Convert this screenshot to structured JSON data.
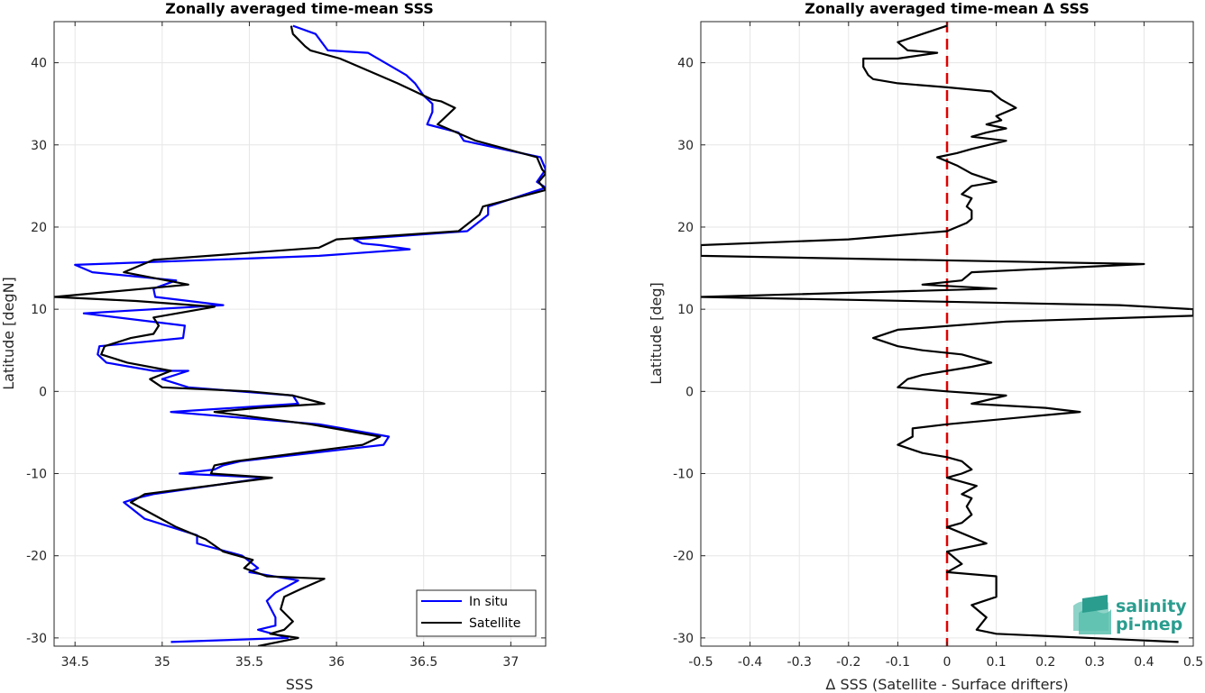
{
  "chart_data": [
    {
      "type": "line",
      "title": "Zonally averaged time-mean SSS",
      "xlabel": "SSS",
      "ylabel": "Latitude [degN]",
      "xlim": [
        34.38,
        37.2
      ],
      "ylim": [
        -31,
        45
      ],
      "xticks": [
        34.5,
        35,
        35.5,
        36,
        36.5,
        37
      ],
      "xtick_labels": [
        "34.5",
        "35",
        "35.5",
        "36",
        "36.5",
        "37"
      ],
      "yticks": [
        -30,
        -20,
        -10,
        0,
        10,
        20,
        30,
        40
      ],
      "ytick_labels": [
        "-30",
        "-20",
        "-10",
        "0",
        "10",
        "20",
        "30",
        "40"
      ],
      "grid": true,
      "legend": {
        "placement": "bottom-right",
        "entries": [
          "In situ",
          "Satellite"
        ]
      },
      "series": [
        {
          "name": "In situ",
          "color": "#0000ff",
          "points": [
            [
              35.75,
              44.5
            ],
            [
              35.88,
              43.5
            ],
            [
              35.95,
              41.5
            ],
            [
              36.18,
              41.2
            ],
            [
              36.4,
              38.5
            ],
            [
              36.45,
              37.5
            ],
            [
              36.5,
              36.0
            ],
            [
              36.55,
              35.0
            ],
            [
              36.55,
              34.0
            ],
            [
              36.52,
              32.5
            ],
            [
              36.7,
              31.5
            ],
            [
              36.73,
              30.5
            ],
            [
              37.17,
              28.5
            ],
            [
              37.2,
              27.0
            ],
            [
              37.15,
              25.5
            ],
            [
              37.2,
              24.8
            ],
            [
              36.87,
              22.5
            ],
            [
              36.87,
              21.5
            ],
            [
              36.75,
              19.5
            ],
            [
              36.1,
              18.5
            ],
            [
              36.15,
              18.0
            ],
            [
              36.25,
              17.8
            ],
            [
              36.42,
              17.3
            ],
            [
              35.9,
              16.5
            ],
            [
              34.5,
              15.4
            ],
            [
              34.6,
              14.5
            ],
            [
              35.08,
              13.5
            ],
            [
              34.95,
              12.5
            ],
            [
              34.96,
              11.5
            ],
            [
              35.35,
              10.5
            ],
            [
              34.55,
              9.5
            ],
            [
              35.13,
              8.0
            ],
            [
              35.12,
              6.5
            ],
            [
              34.64,
              5.5
            ],
            [
              34.63,
              4.5
            ],
            [
              34.68,
              3.5
            ],
            [
              34.95,
              2.5
            ],
            [
              35.15,
              2.5
            ],
            [
              35.0,
              1.5
            ],
            [
              35.15,
              0.5
            ],
            [
              35.75,
              -0.5
            ],
            [
              35.78,
              -1.5
            ],
            [
              35.05,
              -2.5
            ],
            [
              35.9,
              -4.0
            ],
            [
              36.3,
              -5.5
            ],
            [
              36.27,
              -6.5
            ],
            [
              35.45,
              -8.5
            ],
            [
              35.35,
              -9.0
            ],
            [
              35.3,
              -9.5
            ],
            [
              35.1,
              -10.0
            ],
            [
              35.6,
              -10.5
            ],
            [
              34.95,
              -12.5
            ],
            [
              34.85,
              -13.0
            ],
            [
              34.78,
              -13.5
            ],
            [
              34.9,
              -15.5
            ],
            [
              35.2,
              -17.5
            ],
            [
              35.2,
              -18.5
            ],
            [
              35.46,
              -20.0
            ],
            [
              35.55,
              -21.5
            ],
            [
              35.5,
              -22.0
            ],
            [
              35.78,
              -23.0
            ],
            [
              35.65,
              -24.5
            ],
            [
              35.6,
              -25.5
            ],
            [
              35.65,
              -27.5
            ],
            [
              35.65,
              -28.5
            ],
            [
              35.55,
              -29.0
            ],
            [
              35.72,
              -30.0
            ],
            [
              35.05,
              -30.5
            ]
          ]
        },
        {
          "name": "Satellite",
          "color": "#000000",
          "points": [
            [
              35.74,
              44.5
            ],
            [
              35.75,
              43.5
            ],
            [
              35.82,
              42.0
            ],
            [
              35.85,
              41.5
            ],
            [
              36.02,
              40.5
            ],
            [
              36.35,
              37.5
            ],
            [
              36.45,
              36.5
            ],
            [
              36.55,
              35.5
            ],
            [
              36.6,
              35.3
            ],
            [
              36.68,
              34.5
            ],
            [
              36.58,
              32.5
            ],
            [
              36.8,
              30.5
            ],
            [
              37.15,
              28.5
            ],
            [
              37.18,
              27.0
            ],
            [
              37.2,
              26.5
            ],
            [
              37.16,
              25.5
            ],
            [
              37.2,
              24.5
            ],
            [
              36.84,
              22.5
            ],
            [
              36.82,
              21.5
            ],
            [
              36.7,
              19.5
            ],
            [
              36.0,
              18.5
            ],
            [
              35.9,
              17.5
            ],
            [
              34.95,
              16.0
            ],
            [
              34.78,
              14.5
            ],
            [
              35.15,
              13.0
            ],
            [
              34.9,
              12.5
            ],
            [
              34.38,
              11.5
            ],
            [
              34.85,
              11.0
            ],
            [
              35.3,
              10.3
            ],
            [
              34.95,
              9.0
            ],
            [
              34.98,
              8.0
            ],
            [
              34.95,
              7.0
            ],
            [
              34.82,
              6.5
            ],
            [
              34.67,
              5.5
            ],
            [
              34.65,
              4.5
            ],
            [
              34.8,
              3.5
            ],
            [
              35.05,
              2.5
            ],
            [
              34.93,
              1.5
            ],
            [
              35.0,
              0.5
            ],
            [
              35.5,
              0.0
            ],
            [
              35.75,
              -0.5
            ],
            [
              35.93,
              -1.5
            ],
            [
              35.55,
              -2.0
            ],
            [
              35.3,
              -2.5
            ],
            [
              35.85,
              -4.0
            ],
            [
              36.25,
              -5.5
            ],
            [
              36.15,
              -6.5
            ],
            [
              35.42,
              -8.5
            ],
            [
              35.3,
              -9.0
            ],
            [
              35.28,
              -10.0
            ],
            [
              35.63,
              -10.5
            ],
            [
              34.9,
              -12.5
            ],
            [
              34.82,
              -13.5
            ],
            [
              34.95,
              -15.0
            ],
            [
              35.08,
              -16.5
            ],
            [
              35.25,
              -18.0
            ],
            [
              35.35,
              -19.5
            ],
            [
              35.52,
              -20.5
            ],
            [
              35.47,
              -21.5
            ],
            [
              35.6,
              -22.5
            ],
            [
              35.93,
              -22.8
            ],
            [
              35.8,
              -24.0
            ],
            [
              35.7,
              -25.0
            ],
            [
              35.68,
              -26.5
            ],
            [
              35.75,
              -28.0
            ],
            [
              35.7,
              -29.0
            ],
            [
              35.62,
              -29.5
            ],
            [
              35.78,
              -30.0
            ],
            [
              35.55,
              -31.0
            ]
          ]
        }
      ]
    },
    {
      "type": "line",
      "title": "Zonally averaged time-mean Δ SSS",
      "xlabel": "Δ SSS (Satellite - Surface drifters)",
      "ylabel": "Latitude [deg]",
      "xlim": [
        -0.5,
        0.5
      ],
      "ylim": [
        -31,
        45
      ],
      "xticks": [
        -0.5,
        -0.4,
        -0.3,
        -0.2,
        -0.1,
        0,
        0.1,
        0.2,
        0.3,
        0.4,
        0.5
      ],
      "xtick_labels": [
        "-0.5",
        "-0.4",
        "-0.3",
        "-0.2",
        "-0.1",
        "0",
        "0.1",
        "0.2",
        "0.3",
        "0.4",
        "0.5"
      ],
      "yticks": [
        -30,
        -20,
        -10,
        0,
        10,
        20,
        30,
        40
      ],
      "ytick_labels": [
        "-30",
        "-20",
        "-10",
        "0",
        "10",
        "20",
        "30",
        "40"
      ],
      "grid": true,
      "reference_line": {
        "x": 0,
        "color": "#e00000",
        "style": "dashed"
      },
      "series": [
        {
          "name": "",
          "color": "#000000",
          "points": [
            [
              0.0,
              44.5
            ],
            [
              -0.05,
              43.5
            ],
            [
              -0.1,
              42.5
            ],
            [
              -0.08,
              41.5
            ],
            [
              -0.02,
              41.2
            ],
            [
              -0.1,
              40.5
            ],
            [
              -0.17,
              40.5
            ],
            [
              -0.17,
              39.5
            ],
            [
              -0.16,
              38.5
            ],
            [
              -0.15,
              38.0
            ],
            [
              -0.1,
              37.5
            ],
            [
              0.0,
              37.0
            ],
            [
              0.09,
              36.5
            ],
            [
              0.1,
              36.0
            ],
            [
              0.11,
              35.5
            ],
            [
              0.14,
              34.5
            ],
            [
              0.1,
              33.5
            ],
            [
              0.11,
              33.0
            ],
            [
              0.08,
              32.5
            ],
            [
              0.12,
              32.0
            ],
            [
              0.08,
              31.5
            ],
            [
              0.05,
              31.0
            ],
            [
              0.12,
              30.5
            ],
            [
              0.05,
              29.5
            ],
            [
              0.02,
              29.0
            ],
            [
              -0.02,
              28.5
            ],
            [
              0.0,
              28.0
            ],
            [
              0.02,
              27.5
            ],
            [
              0.05,
              26.5
            ],
            [
              0.1,
              25.5
            ],
            [
              0.05,
              25.0
            ],
            [
              0.03,
              24.0
            ],
            [
              0.05,
              23.5
            ],
            [
              0.04,
              22.5
            ],
            [
              0.05,
              22.0
            ],
            [
              0.05,
              21.0
            ],
            [
              0.04,
              20.5
            ],
            [
              0.0,
              19.5
            ],
            [
              -0.2,
              18.5
            ],
            [
              -0.5,
              17.8
            ],
            [
              -0.5,
              16.5
            ],
            [
              0.4,
              15.5
            ],
            [
              0.05,
              14.5
            ],
            [
              0.03,
              13.5
            ],
            [
              -0.05,
              13.0
            ],
            [
              0.1,
              12.5
            ],
            [
              -0.5,
              11.5
            ],
            [
              0.35,
              10.5
            ],
            [
              0.5,
              10.0
            ],
            [
              0.5,
              9.2
            ],
            [
              0.12,
              8.5
            ],
            [
              -0.1,
              7.5
            ],
            [
              -0.15,
              6.5
            ],
            [
              -0.1,
              5.5
            ],
            [
              -0.05,
              5.0
            ],
            [
              0.03,
              4.5
            ],
            [
              0.09,
              3.5
            ],
            [
              0.05,
              3.0
            ],
            [
              0.0,
              2.5
            ],
            [
              -0.05,
              2.0
            ],
            [
              -0.08,
              1.5
            ],
            [
              -0.1,
              0.5
            ],
            [
              0.0,
              0.0
            ],
            [
              0.12,
              -0.5
            ],
            [
              0.05,
              -1.5
            ],
            [
              0.2,
              -2.0
            ],
            [
              0.27,
              -2.5
            ],
            [
              0.0,
              -4.0
            ],
            [
              -0.07,
              -4.5
            ],
            [
              -0.07,
              -5.5
            ],
            [
              -0.1,
              -6.5
            ],
            [
              -0.05,
              -7.5
            ],
            [
              0.0,
              -8.0
            ],
            [
              0.03,
              -8.5
            ],
            [
              0.05,
              -9.5
            ],
            [
              0.03,
              -10.0
            ],
            [
              0.0,
              -10.5
            ],
            [
              0.06,
              -11.5
            ],
            [
              0.03,
              -12.5
            ],
            [
              0.05,
              -13.0
            ],
            [
              0.04,
              -14.0
            ],
            [
              0.05,
              -15.0
            ],
            [
              0.03,
              -16.0
            ],
            [
              0.0,
              -16.5
            ],
            [
              0.08,
              -18.5
            ],
            [
              0.0,
              -19.5
            ],
            [
              0.03,
              -21.0
            ],
            [
              0.0,
              -22.0
            ],
            [
              0.1,
              -22.5
            ],
            [
              0.1,
              -25.0
            ],
            [
              0.05,
              -26.0
            ],
            [
              0.08,
              -27.5
            ],
            [
              0.06,
              -29.0
            ],
            [
              0.1,
              -29.5
            ],
            [
              0.47,
              -30.5
            ]
          ]
        }
      ]
    }
  ],
  "legend": {
    "in_situ": "In situ",
    "satellite": "Satellite"
  },
  "logo": {
    "line1": "salinity",
    "line2": "pi-mep"
  }
}
